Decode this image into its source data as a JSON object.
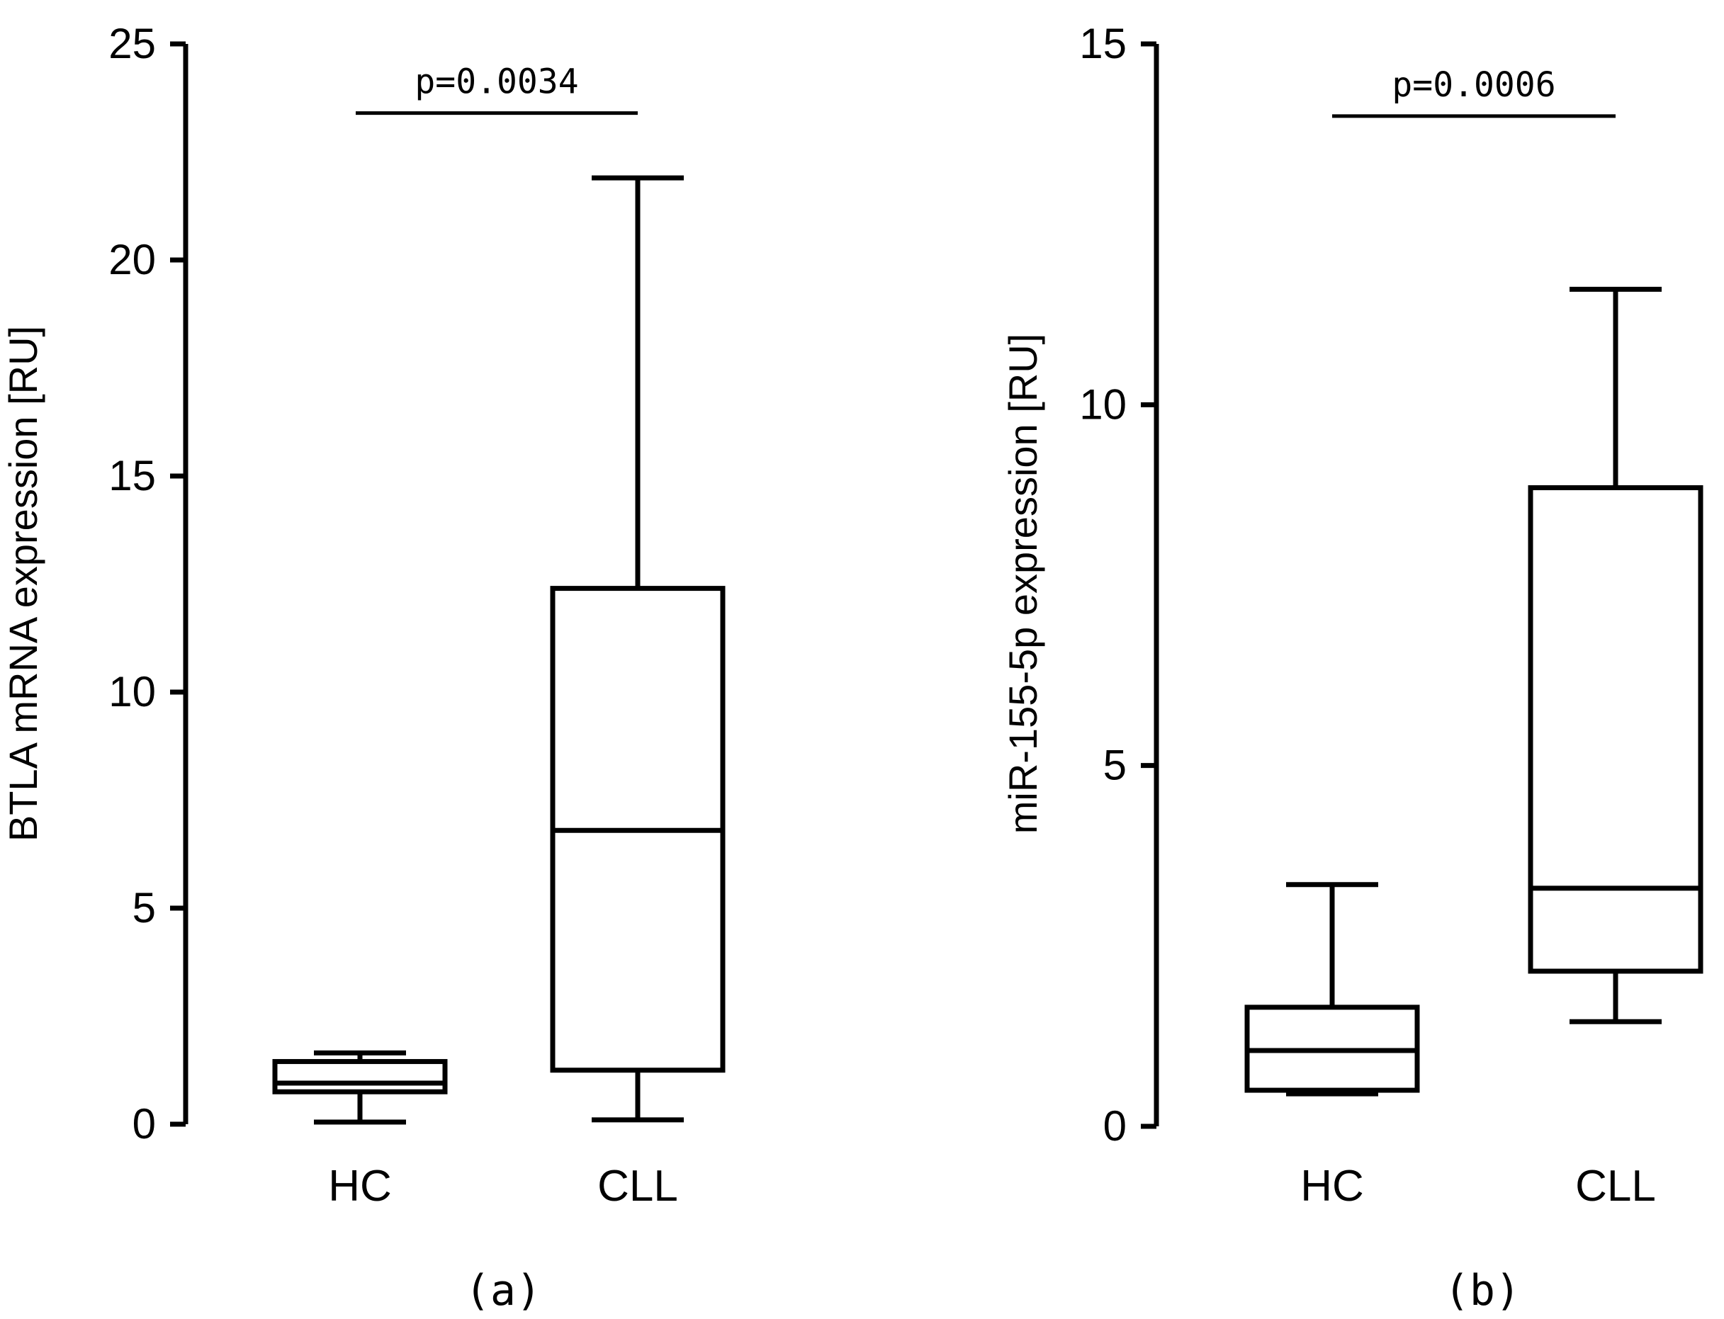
{
  "chart_data": [
    {
      "type": "box",
      "panel_label": "(a)",
      "ylabel": "BTLA mRNA expression  [RU]",
      "ylim": [
        0,
        25
      ],
      "yticks": [
        0,
        5,
        10,
        15,
        20,
        25
      ],
      "ytick_labels": [
        "0",
        "5",
        "10",
        "15",
        "20",
        "25"
      ],
      "categories": [
        "HC",
        "CLL"
      ],
      "boxes": [
        {
          "name": "HC",
          "whisker_low": 0.05,
          "q1": 0.75,
          "median": 0.95,
          "q3": 1.45,
          "whisker_high": 1.65
        },
        {
          "name": "CLL",
          "whisker_low": 0.1,
          "q1": 1.25,
          "median": 6.8,
          "q3": 12.4,
          "whisker_high": 21.9
        }
      ],
      "annotation": {
        "text": "p=0.0034",
        "y": 23.4
      }
    },
    {
      "type": "box",
      "panel_label": "(b)",
      "ylabel": "miR-155-5p expression  [RU]",
      "ylim": [
        0,
        15
      ],
      "yticks": [
        0,
        5,
        10,
        15
      ],
      "ytick_labels": [
        "0",
        "5",
        "10",
        "15"
      ],
      "categories": [
        "HC",
        "CLL"
      ],
      "boxes": [
        {
          "name": "HC",
          "whisker_low": 0.45,
          "q1": 0.5,
          "median": 1.05,
          "q3": 1.65,
          "whisker_high": 3.35
        },
        {
          "name": "CLL",
          "whisker_low": 1.45,
          "q1": 2.15,
          "median": 3.3,
          "q3": 8.85,
          "whisker_high": 11.6
        }
      ],
      "annotation": {
        "text": "p=0.0006",
        "y": 14.0
      }
    }
  ]
}
